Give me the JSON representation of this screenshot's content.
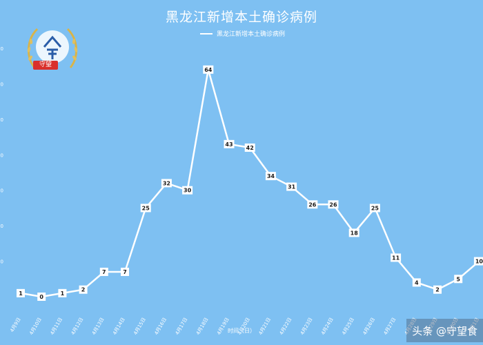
{
  "chart_data": {
    "type": "line",
    "title": "黑龙江新增本土确诊病例",
    "xlabel": "时间（日）",
    "ylabel": "",
    "categories": [
      "4月9日",
      "4月10日",
      "4月11日",
      "4月12日",
      "4月13日",
      "4月14日",
      "4月15日",
      "4月16日",
      "4月17日",
      "4月18日",
      "4月19日",
      "4月20日",
      "4月21日",
      "4月22日",
      "4月23日",
      "4月24日",
      "4月25日",
      "4月26日",
      "4月27日",
      "4月28日",
      "4月29日",
      "4月30日",
      "5月1日"
    ],
    "series": [
      {
        "name": "黑龙江新增本土确诊病例",
        "values": [
          1,
          0,
          1,
          2,
          7,
          7,
          25,
          32,
          30,
          64,
          43,
          42,
          34,
          31,
          26,
          26,
          18,
          25,
          11,
          4,
          2,
          5,
          10
        ]
      }
    ],
    "ylim": [
      0,
      70
    ],
    "grid": false,
    "legend": "top-center",
    "colors": {
      "background": "#7ec0f2",
      "line": "#ffffff",
      "label_box": "#ffffff"
    }
  },
  "logo": {
    "badge_text": "守望",
    "icon": "wreath-logo-icon"
  },
  "watermark": {
    "text": "头条 @守望食"
  }
}
